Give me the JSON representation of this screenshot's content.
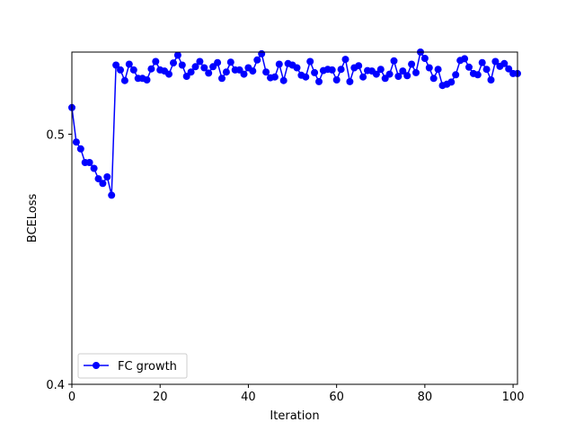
{
  "chart_data": {
    "type": "line",
    "title": "",
    "xlabel": "Iteration",
    "ylabel": "BCELoss",
    "xlim": [
      0,
      101
    ],
    "ylim": [
      0.4,
      0.538
    ],
    "y_scale": "log",
    "grid": false,
    "legend_placement": "lower-left",
    "xticks": [
      0,
      20,
      40,
      60,
      80,
      100
    ],
    "xtick_labels": [
      "0",
      "20",
      "40",
      "60",
      "80",
      "100"
    ],
    "yticks": [
      0.4,
      0.5
    ],
    "ytick_labels": [
      "0.4",
      "0.5"
    ],
    "series": [
      {
        "name": "FC growth",
        "color": "#0000ff",
        "marker": "circle",
        "x": [
          0,
          1,
          2,
          3,
          4,
          5,
          6,
          7,
          8,
          9,
          10,
          11,
          12,
          13,
          14,
          15,
          16,
          17,
          18,
          19,
          20,
          21,
          22,
          23,
          24,
          25,
          26,
          27,
          28,
          29,
          30,
          31,
          32,
          33,
          34,
          35,
          36,
          37,
          38,
          39,
          40,
          41,
          42,
          43,
          44,
          45,
          46,
          47,
          48,
          49,
          50,
          51,
          52,
          53,
          54,
          55,
          56,
          57,
          58,
          59,
          60,
          61,
          62,
          63,
          64,
          65,
          66,
          67,
          68,
          69,
          70,
          71,
          72,
          73,
          74,
          75,
          76,
          77,
          78,
          79,
          80,
          81,
          82,
          83,
          84,
          85,
          86,
          87,
          88,
          89,
          90,
          91,
          92,
          93,
          94,
          95,
          96,
          97,
          98,
          99,
          100,
          101
        ],
        "values": [
          0.512,
          0.4965,
          0.4935,
          0.4875,
          0.4875,
          0.485,
          0.4805,
          0.4785,
          0.4813,
          0.4735,
          0.5318,
          0.5295,
          0.5245,
          0.5322,
          0.5295,
          0.5255,
          0.5255,
          0.5248,
          0.53,
          0.5335,
          0.5295,
          0.529,
          0.5275,
          0.5328,
          0.5365,
          0.5318,
          0.5265,
          0.5285,
          0.531,
          0.5335,
          0.5305,
          0.528,
          0.531,
          0.533,
          0.5255,
          0.5285,
          0.5332,
          0.5295,
          0.5295,
          0.5275,
          0.5305,
          0.529,
          0.5342,
          0.5372,
          0.5285,
          0.5258,
          0.5262,
          0.5322,
          0.5245,
          0.5325,
          0.5318,
          0.5305,
          0.527,
          0.5262,
          0.5335,
          0.5282,
          0.524,
          0.5292,
          0.5298,
          0.5295,
          0.5248,
          0.5298,
          0.5345,
          0.524,
          0.5305,
          0.5315,
          0.5262,
          0.5292,
          0.529,
          0.5275,
          0.5298,
          0.5255,
          0.5275,
          0.5338,
          0.5265,
          0.529,
          0.5268,
          0.5322,
          0.5282,
          0.538,
          0.535,
          0.5305,
          0.5255,
          0.5298,
          0.5222,
          0.5228,
          0.5238,
          0.5272,
          0.534,
          0.5348,
          0.5308,
          0.5278,
          0.5272,
          0.533,
          0.5298,
          0.5248,
          0.5335,
          0.5312,
          0.5325,
          0.53,
          0.5278,
          0.5278
        ]
      }
    ]
  }
}
